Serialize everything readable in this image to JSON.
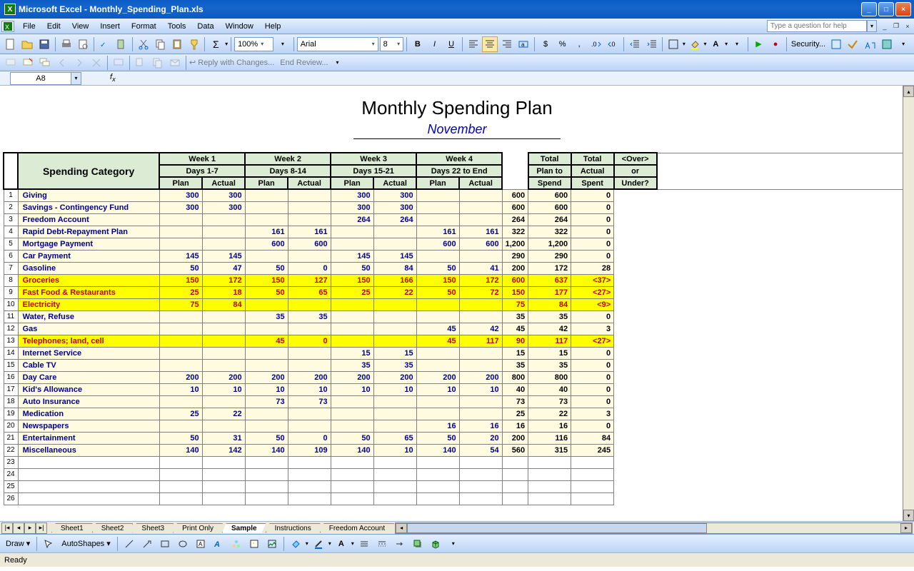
{
  "window": {
    "title": "Microsoft Excel - Monthly_Spending_Plan.xls"
  },
  "menus": [
    "File",
    "Edit",
    "View",
    "Insert",
    "Format",
    "Tools",
    "Data",
    "Window",
    "Help"
  ],
  "help_placeholder": "Type a question for help",
  "name_box": "A8",
  "toolbar": {
    "zoom": "100%",
    "font": "Arial",
    "size": "8",
    "reply": "Reply with Changes...",
    "end_review": "End Review...",
    "security": "Security..."
  },
  "sheet": {
    "title": "Monthly Spending Plan",
    "subtitle": "November",
    "header": {
      "category": "Spending Category",
      "weeks": [
        {
          "top": "Week 1",
          "bot": "Days 1-7"
        },
        {
          "top": "Week 2",
          "bot": "Days 8-14"
        },
        {
          "top": "Week 3",
          "bot": "Days 15-21"
        },
        {
          "top": "Week 4",
          "bot": "Days 22 to End"
        }
      ],
      "sub": [
        "Plan",
        "Actual"
      ],
      "totals": [
        {
          "l1": "Total",
          "l2": "Plan to",
          "l3": "Spend"
        },
        {
          "l1": "Total",
          "l2": "Actual",
          "l3": "Spent"
        },
        {
          "l1": "<Over>",
          "l2": "or",
          "l3": "Under?"
        }
      ]
    },
    "rows": [
      {
        "n": 1,
        "cat": "Giving",
        "w": [
          [
            "300",
            "300"
          ],
          [
            "",
            ""
          ],
          [
            "300",
            "300"
          ],
          [
            "",
            ""
          ]
        ],
        "t": [
          "600",
          "600",
          "0"
        ],
        "hl": false
      },
      {
        "n": 2,
        "cat": "Savings - Contingency Fund",
        "w": [
          [
            "300",
            "300"
          ],
          [
            "",
            ""
          ],
          [
            "300",
            "300"
          ],
          [
            "",
            ""
          ]
        ],
        "t": [
          "600",
          "600",
          "0"
        ],
        "hl": false
      },
      {
        "n": 3,
        "cat": "Freedom Account",
        "w": [
          [
            "",
            ""
          ],
          [
            "",
            ""
          ],
          [
            "264",
            "264"
          ],
          [
            "",
            ""
          ]
        ],
        "t": [
          "264",
          "264",
          "0"
        ],
        "hl": false
      },
      {
        "n": 4,
        "cat": "Rapid Debt-Repayment Plan",
        "w": [
          [
            "",
            ""
          ],
          [
            "161",
            "161"
          ],
          [
            "",
            ""
          ],
          [
            "161",
            "161"
          ]
        ],
        "t": [
          "322",
          "322",
          "0"
        ],
        "hl": false
      },
      {
        "n": 5,
        "cat": "Mortgage Payment",
        "w": [
          [
            "",
            ""
          ],
          [
            "600",
            "600"
          ],
          [
            "",
            ""
          ],
          [
            "600",
            "600"
          ]
        ],
        "t": [
          "1,200",
          "1,200",
          "0"
        ],
        "hl": false
      },
      {
        "n": 6,
        "cat": "Car Payment",
        "w": [
          [
            "145",
            "145"
          ],
          [
            "",
            ""
          ],
          [
            "145",
            "145"
          ],
          [
            "",
            ""
          ]
        ],
        "t": [
          "290",
          "290",
          "0"
        ],
        "hl": false
      },
      {
        "n": 7,
        "cat": "Gasoline",
        "w": [
          [
            "50",
            "47"
          ],
          [
            "50",
            "0"
          ],
          [
            "50",
            "84"
          ],
          [
            "50",
            "41"
          ]
        ],
        "t": [
          "200",
          "172",
          "28"
        ],
        "hl": false
      },
      {
        "n": 8,
        "cat": "Groceries",
        "w": [
          [
            "150",
            "172"
          ],
          [
            "150",
            "127"
          ],
          [
            "150",
            "166"
          ],
          [
            "150",
            "172"
          ]
        ],
        "t": [
          "600",
          "637",
          "<37>"
        ],
        "hl": true
      },
      {
        "n": 9,
        "cat": "Fast Food & Restaurants",
        "w": [
          [
            "25",
            "18"
          ],
          [
            "50",
            "65"
          ],
          [
            "25",
            "22"
          ],
          [
            "50",
            "72"
          ]
        ],
        "t": [
          "150",
          "177",
          "<27>"
        ],
        "hl": true
      },
      {
        "n": 10,
        "cat": "Electricity",
        "w": [
          [
            "75",
            "84"
          ],
          [
            "",
            ""
          ],
          [
            "",
            ""
          ],
          [
            "",
            ""
          ]
        ],
        "t": [
          "75",
          "84",
          "<9>"
        ],
        "hl": true
      },
      {
        "n": 11,
        "cat": "Water, Refuse",
        "w": [
          [
            "",
            ""
          ],
          [
            "35",
            "35"
          ],
          [
            "",
            ""
          ],
          [
            "",
            ""
          ]
        ],
        "t": [
          "35",
          "35",
          "0"
        ],
        "hl": false
      },
      {
        "n": 12,
        "cat": "Gas",
        "w": [
          [
            "",
            ""
          ],
          [
            "",
            ""
          ],
          [
            "",
            ""
          ],
          [
            "45",
            "42"
          ]
        ],
        "t": [
          "45",
          "42",
          "3"
        ],
        "hl": false
      },
      {
        "n": 13,
        "cat": "Telephones; land, cell",
        "w": [
          [
            "",
            ""
          ],
          [
            "45",
            "0"
          ],
          [
            "",
            ""
          ],
          [
            "45",
            "117"
          ]
        ],
        "t": [
          "90",
          "117",
          "<27>"
        ],
        "hl": true
      },
      {
        "n": 14,
        "cat": "Internet Service",
        "w": [
          [
            "",
            ""
          ],
          [
            "",
            ""
          ],
          [
            "15",
            "15"
          ],
          [
            "",
            ""
          ]
        ],
        "t": [
          "15",
          "15",
          "0"
        ],
        "hl": false
      },
      {
        "n": 15,
        "cat": "Cable TV",
        "w": [
          [
            "",
            ""
          ],
          [
            "",
            ""
          ],
          [
            "35",
            "35"
          ],
          [
            "",
            ""
          ]
        ],
        "t": [
          "35",
          "35",
          "0"
        ],
        "hl": false
      },
      {
        "n": 16,
        "cat": "Day Care",
        "w": [
          [
            "200",
            "200"
          ],
          [
            "200",
            "200"
          ],
          [
            "200",
            "200"
          ],
          [
            "200",
            "200"
          ]
        ],
        "t": [
          "800",
          "800",
          "0"
        ],
        "hl": false
      },
      {
        "n": 17,
        "cat": "Kid's Allowance",
        "w": [
          [
            "10",
            "10"
          ],
          [
            "10",
            "10"
          ],
          [
            "10",
            "10"
          ],
          [
            "10",
            "10"
          ]
        ],
        "t": [
          "40",
          "40",
          "0"
        ],
        "hl": false
      },
      {
        "n": 18,
        "cat": "Auto Insurance",
        "w": [
          [
            "",
            ""
          ],
          [
            "73",
            "73"
          ],
          [
            "",
            ""
          ],
          [
            "",
            ""
          ]
        ],
        "t": [
          "73",
          "73",
          "0"
        ],
        "hl": false
      },
      {
        "n": 19,
        "cat": "Medication",
        "w": [
          [
            "25",
            "22"
          ],
          [
            "",
            ""
          ],
          [
            "",
            ""
          ],
          [
            "",
            ""
          ]
        ],
        "t": [
          "25",
          "22",
          "3"
        ],
        "hl": false
      },
      {
        "n": 20,
        "cat": "Newspapers",
        "w": [
          [
            "",
            ""
          ],
          [
            "",
            ""
          ],
          [
            "",
            ""
          ],
          [
            "16",
            "16"
          ]
        ],
        "t": [
          "16",
          "16",
          "0"
        ],
        "hl": false
      },
      {
        "n": 21,
        "cat": "Entertainment",
        "w": [
          [
            "50",
            "31"
          ],
          [
            "50",
            "0"
          ],
          [
            "50",
            "65"
          ],
          [
            "50",
            "20"
          ]
        ],
        "t": [
          "200",
          "116",
          "84"
        ],
        "hl": false
      },
      {
        "n": 22,
        "cat": "Miscellaneous",
        "w": [
          [
            "140",
            "142"
          ],
          [
            "140",
            "109"
          ],
          [
            "140",
            "10"
          ],
          [
            "140",
            "54"
          ]
        ],
        "t": [
          "560",
          "315",
          "245"
        ],
        "hl": false
      },
      {
        "n": 23,
        "cat": "",
        "w": [
          [
            "",
            ""
          ],
          [
            "",
            ""
          ],
          [
            "",
            ""
          ],
          [
            "",
            ""
          ]
        ],
        "t": [
          "",
          "",
          ""
        ],
        "hl": false,
        "empty": true
      },
      {
        "n": 24,
        "cat": "",
        "w": [
          [
            "",
            ""
          ],
          [
            "",
            ""
          ],
          [
            "",
            ""
          ],
          [
            "",
            ""
          ]
        ],
        "t": [
          "",
          "",
          ""
        ],
        "hl": false,
        "empty": true
      },
      {
        "n": 25,
        "cat": "",
        "w": [
          [
            "",
            ""
          ],
          [
            "",
            ""
          ],
          [
            "",
            ""
          ],
          [
            "",
            ""
          ]
        ],
        "t": [
          "",
          "",
          ""
        ],
        "hl": false,
        "empty": true
      },
      {
        "n": 26,
        "cat": "",
        "w": [
          [
            "",
            ""
          ],
          [
            "",
            ""
          ],
          [
            "",
            ""
          ],
          [
            "",
            ""
          ]
        ],
        "t": [
          "",
          "",
          ""
        ],
        "hl": false,
        "empty": true
      }
    ]
  },
  "tabs": [
    "Sheet1",
    "Sheet2",
    "Sheet3",
    "Print Only",
    "Sample",
    "Instructions",
    "Freedom Account"
  ],
  "active_tab": "Sample",
  "draw": {
    "label": "Draw",
    "autoshapes": "AutoShapes"
  },
  "status": "Ready",
  "colors": {
    "titlebar": "#0a5bc4",
    "toolbar_top": "#e3efff",
    "toolbar_bot": "#bcd4f6",
    "hdr_bg": "#dcecd4",
    "cell_bg": "#fffbe0",
    "num_color": "#000090",
    "yellow": "#ffff00",
    "red": "#c00000",
    "border": "#808080"
  }
}
